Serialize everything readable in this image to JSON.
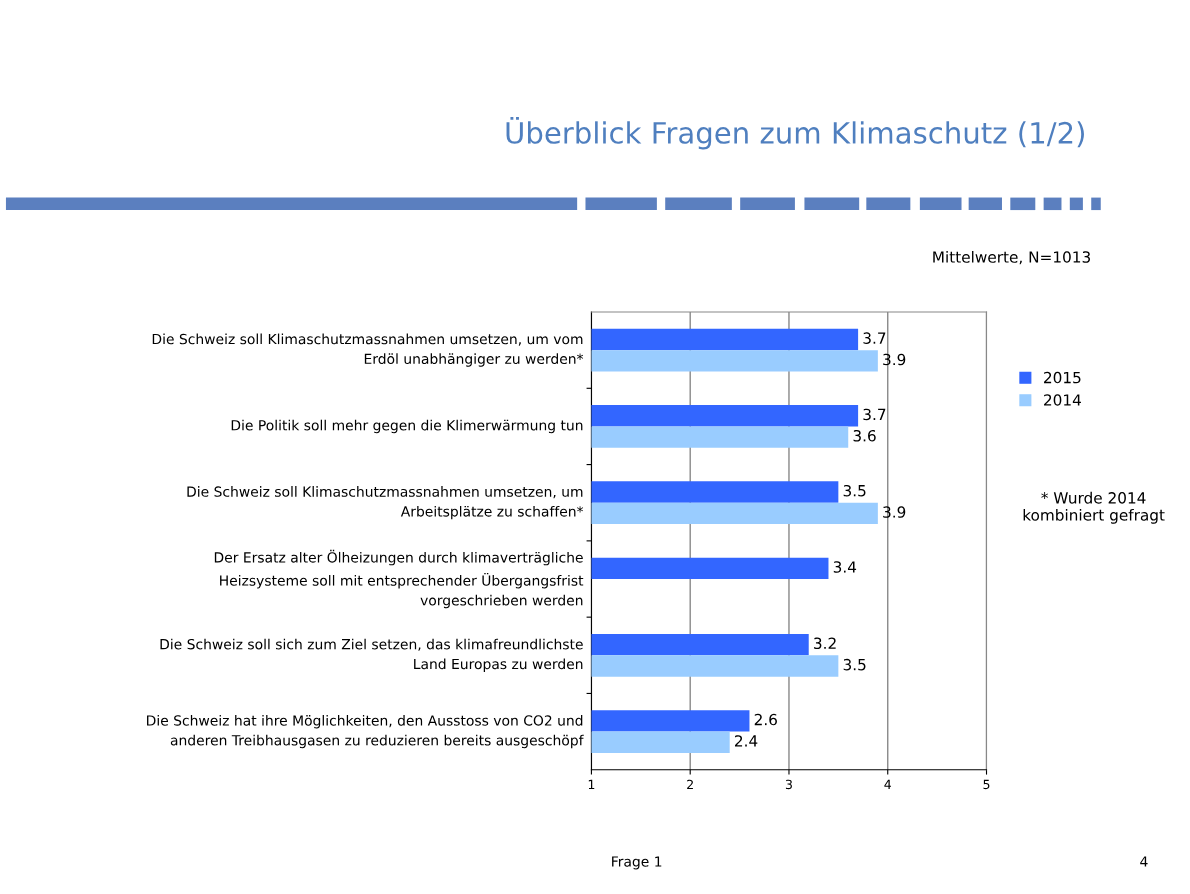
{
  "chart_data": {
    "type": "bar",
    "orientation": "horizontal",
    "title": "Überblick Fragen zum Klimaschutz (1/2)",
    "categories": [
      "Die Schweiz soll Klimaschutzmassnahmen umsetzen, um vom\nErdöl unabhängiger zu werden*",
      "Die Politik soll mehr gegen die Klimerwärmung tun",
      "Die Schweiz soll Klimaschutzmassnahmen umsetzen, um\nArbeitsplätze zu schaffen*",
      "Der Ersatz alter Ölheizungen durch klimaverträgliche\nHeizsysteme soll mit entsprechender Übergangsfrist\nvorgeschrieben werden",
      "Die Schweiz soll sich zum Ziel setzen, das klimafreundlichste\nLand Europas zu werden",
      "Die Schweiz hat ihre Möglichkeiten, den Ausstoss von CO2 und\nanderen Treibhausgasen zu reduzieren bereits ausgeschöpf"
    ],
    "series": [
      {
        "name": "2015",
        "color": "#3366ff",
        "values": [
          3.7,
          3.7,
          3.5,
          3.4,
          3.2,
          2.6
        ]
      },
      {
        "name": "2014",
        "color": "#99ccff",
        "values": [
          3.9,
          3.6,
          3.9,
          null,
          3.5,
          2.4
        ]
      }
    ],
    "xlim": [
      1,
      5
    ],
    "xticks": [
      1,
      2,
      3,
      4,
      5
    ],
    "grid": "x",
    "legend": "right",
    "data_labels": true,
    "annotations": [
      "Mittelwerte, N=1013",
      "* Wurde 2014\nkombiniert gefragt",
      "Frage 1",
      "4"
    ]
  }
}
